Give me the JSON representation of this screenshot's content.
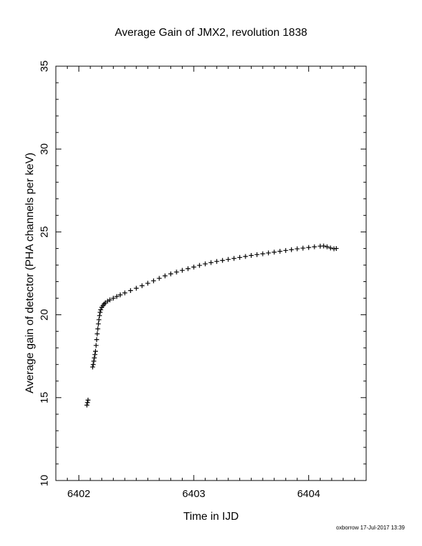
{
  "chart_data": {
    "type": "scatter",
    "title": "Average Gain of JMX2, revolution 1838",
    "xlabel": "Time in IJD",
    "ylabel": "Average gain of detector (PHA channels per keV)",
    "xlim": [
      6401.8,
      6404.5
    ],
    "ylim": [
      10,
      35
    ],
    "xticks": [
      6402,
      6403,
      6404
    ],
    "yticks": [
      10,
      15,
      20,
      25,
      30,
      35
    ],
    "marker": "plus",
    "grid": false,
    "color": "#000000",
    "series": [
      {
        "points": [
          [
            6402.07,
            14.55
          ],
          [
            6402.075,
            14.7
          ],
          [
            6402.08,
            14.85
          ],
          [
            6402.12,
            16.85
          ],
          [
            6402.125,
            17.0
          ],
          [
            6402.13,
            17.2
          ],
          [
            6402.135,
            17.4
          ],
          [
            6402.14,
            17.6
          ],
          [
            6402.145,
            17.8
          ],
          [
            6402.15,
            18.15
          ],
          [
            6402.155,
            18.5
          ],
          [
            6402.16,
            18.85
          ],
          [
            6402.165,
            19.15
          ],
          [
            6402.17,
            19.45
          ],
          [
            6402.175,
            19.7
          ],
          [
            6402.18,
            19.95
          ],
          [
            6402.185,
            20.15
          ],
          [
            6402.19,
            20.3
          ],
          [
            6402.2,
            20.45
          ],
          [
            6402.21,
            20.55
          ],
          [
            6402.22,
            20.65
          ],
          [
            6402.23,
            20.72
          ],
          [
            6402.25,
            20.82
          ],
          [
            6402.27,
            20.9
          ],
          [
            6402.3,
            21.0
          ],
          [
            6402.33,
            21.1
          ],
          [
            6402.36,
            21.2
          ],
          [
            6402.4,
            21.32
          ],
          [
            6402.45,
            21.46
          ],
          [
            6402.5,
            21.6
          ],
          [
            6402.55,
            21.75
          ],
          [
            6402.6,
            21.9
          ],
          [
            6402.65,
            22.05
          ],
          [
            6402.7,
            22.2
          ],
          [
            6402.75,
            22.35
          ],
          [
            6402.8,
            22.47
          ],
          [
            6402.85,
            22.58
          ],
          [
            6402.9,
            22.68
          ],
          [
            6402.95,
            22.78
          ],
          [
            6403.0,
            22.88
          ],
          [
            6403.05,
            22.98
          ],
          [
            6403.1,
            23.07
          ],
          [
            6403.15,
            23.15
          ],
          [
            6403.2,
            23.22
          ],
          [
            6403.25,
            23.28
          ],
          [
            6403.3,
            23.34
          ],
          [
            6403.35,
            23.4
          ],
          [
            6403.4,
            23.46
          ],
          [
            6403.45,
            23.52
          ],
          [
            6403.5,
            23.58
          ],
          [
            6403.55,
            23.63
          ],
          [
            6403.6,
            23.68
          ],
          [
            6403.65,
            23.73
          ],
          [
            6403.7,
            23.78
          ],
          [
            6403.75,
            23.83
          ],
          [
            6403.8,
            23.88
          ],
          [
            6403.85,
            23.93
          ],
          [
            6403.9,
            23.98
          ],
          [
            6403.95,
            24.02
          ],
          [
            6404.0,
            24.06
          ],
          [
            6404.05,
            24.1
          ],
          [
            6404.1,
            24.14
          ],
          [
            6404.13,
            24.15
          ],
          [
            6404.16,
            24.1
          ],
          [
            6404.19,
            24.03
          ],
          [
            6404.22,
            23.98
          ],
          [
            6404.24,
            24.0
          ]
        ]
      }
    ]
  },
  "footer": "oxborrow 17-Jul-2017 13:39"
}
